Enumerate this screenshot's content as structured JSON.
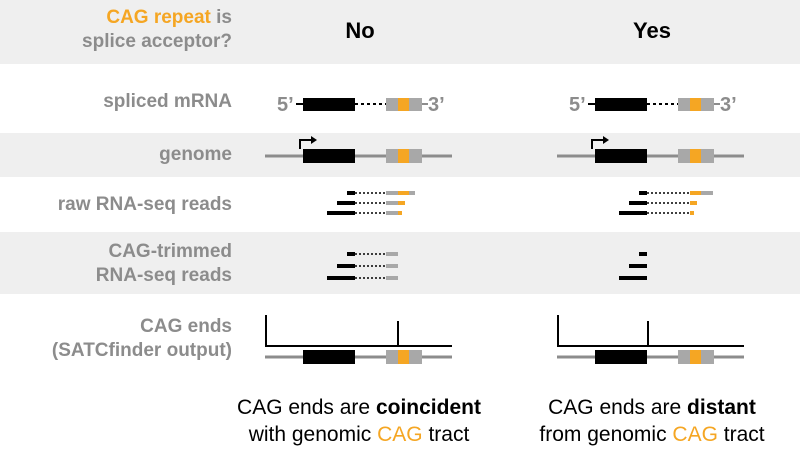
{
  "header": {
    "question_highlight": "CAG repeat",
    "question_rest1": " is",
    "question_line2": "splice acceptor?",
    "col_no": "No",
    "col_yes": "Yes"
  },
  "rows": {
    "spliced_mrna": "spliced mRNA",
    "genome": "genome",
    "raw_reads": "raw RNA-seq reads",
    "trimmed_line1": "CAG-trimmed",
    "trimmed_line2": "RNA-seq reads",
    "cag_ends_line1": "CAG ends",
    "cag_ends_line2": "(SATCfinder output)"
  },
  "mrna_labels": {
    "five_prime": "5’",
    "three_prime": "3’"
  },
  "captions": {
    "no": {
      "pre": "CAG ends are ",
      "bold": "coincident",
      "line2_pre": "with genomic ",
      "cag": "CAG",
      "line2_post": " tract"
    },
    "yes": {
      "pre": "CAG ends are ",
      "bold": "distant",
      "line2_pre": "from genomic ",
      "cag": "CAG",
      "line2_post": " tract"
    }
  },
  "colors": {
    "exon": "#000000",
    "intron_exon2": "#a8a8a8",
    "cag_tract": "#f5a623",
    "label_gray": "#8c8c8c",
    "band": "#efefef"
  }
}
